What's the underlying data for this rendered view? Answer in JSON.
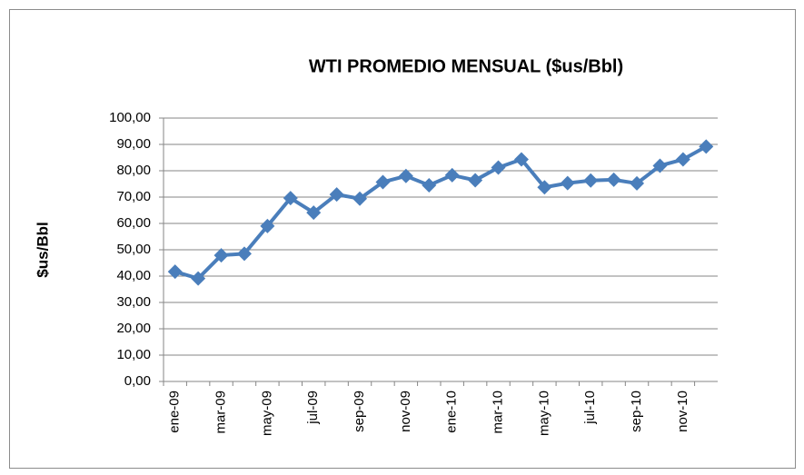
{
  "chart_data": {
    "type": "line",
    "title": "WTI PROMEDIO MENSUAL ($us/Bbl)",
    "y_label": "$us/Bbl",
    "categories": [
      "ene-09",
      null,
      "mar-09",
      null,
      "may-09",
      null,
      "jul-09",
      null,
      "sep-09",
      null,
      "nov-09",
      null,
      "ene-10",
      null,
      "mar-10",
      null,
      "may-10",
      null,
      "jul-10",
      null,
      "sep-10",
      null,
      "nov-10",
      null
    ],
    "series": [
      {
        "name": "WTI",
        "color": "#4a7ebb",
        "values": [
          41.7,
          39.1,
          47.9,
          48.5,
          59.0,
          69.6,
          64.1,
          71.0,
          69.4,
          75.7,
          78.0,
          74.5,
          78.3,
          76.4,
          81.2,
          84.3,
          73.7,
          75.3,
          76.3,
          76.6,
          75.2,
          81.9,
          84.3,
          89.2
        ]
      }
    ],
    "ylim": [
      0,
      100
    ],
    "yticks": [
      {
        "value": 0,
        "label": "0,00"
      },
      {
        "value": 10,
        "label": "10,00"
      },
      {
        "value": 20,
        "label": "20,00"
      },
      {
        "value": 30,
        "label": "30,00"
      },
      {
        "value": 40,
        "label": "40,00"
      },
      {
        "value": 50,
        "label": "50,00"
      },
      {
        "value": 60,
        "label": "60,00"
      },
      {
        "value": 70,
        "label": "70,00"
      },
      {
        "value": 80,
        "label": "80,00"
      },
      {
        "value": 90,
        "label": "90,00"
      },
      {
        "value": 100,
        "label": "100,00"
      }
    ],
    "grid": true
  }
}
